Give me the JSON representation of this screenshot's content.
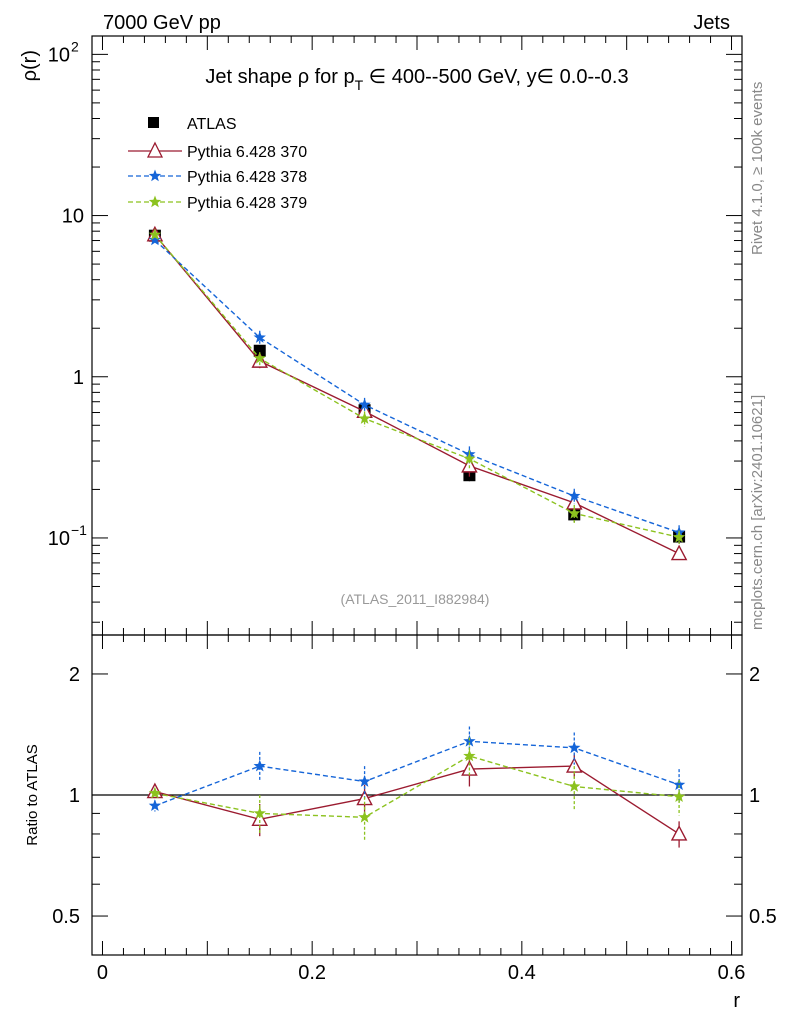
{
  "header": {
    "left": "7000 GeV pp",
    "right": "Jets"
  },
  "side": {
    "version": "Rivet 4.1.0, ≥ 100k events",
    "site": "mcplots.cern.ch [arXiv:2401.10621]"
  },
  "chart_data": {
    "type": "line",
    "title": {
      "prefix": "Jet shape ρ for p",
      "sub": "T",
      "suffix": " ∈ 400--500 GeV, y∈ 0.0--0.3"
    },
    "analysis": "(ATLAS_2011_I882984)",
    "xlabel": "r",
    "ylabel": "ρ(r)",
    "ratio_ylabel": "Ratio to ATLAS",
    "xlim": [
      -0.01,
      0.61
    ],
    "ylim": [
      0.025,
      130
    ],
    "ratio_ylim": [
      0.4,
      2.5
    ],
    "yscale": "log",
    "x_ticks": [
      0,
      0.2,
      0.4,
      0.6
    ],
    "x_tick_labels": [
      "0",
      "0.2",
      "0.4",
      "0.6"
    ],
    "y_ticks": [
      0.1,
      1,
      10,
      100
    ],
    "y_tick_labels": [
      {
        "base": "10",
        "exp": "−1"
      },
      {
        "base": "1",
        "exp": ""
      },
      {
        "base": "10",
        "exp": ""
      },
      {
        "base": "10",
        "exp": "2"
      }
    ],
    "ratio_ticks": [
      0.5,
      1,
      2
    ],
    "ratio_tick_labels": [
      "0.5",
      "1",
      "2"
    ],
    "x": [
      0.05,
      0.15,
      0.25,
      0.35,
      0.45,
      0.55
    ],
    "data": {
      "name": "ATLAS",
      "values": [
        7.5,
        1.45,
        0.62,
        0.245,
        0.14,
        0.102
      ],
      "errors": [
        0.3,
        0.1,
        0.05,
        0.02,
        0.015,
        0.01
      ]
    },
    "series": [
      {
        "name": "Pythia 6.428 370",
        "color": "#9b1b30",
        "dash": "",
        "marker": "triangle-open",
        "values": [
          7.6,
          1.25,
          0.61,
          0.28,
          0.165,
          0.08
        ],
        "errors": [
          0.25,
          0.12,
          0.06,
          0.04,
          0.018,
          0.007
        ]
      },
      {
        "name": "Pythia 6.428 378",
        "color": "#1565d8",
        "dash": "5,3",
        "marker": "star",
        "values": [
          7.05,
          1.75,
          0.67,
          0.33,
          0.182,
          0.108
        ],
        "errors": [
          0.25,
          0.18,
          0.07,
          0.04,
          0.02,
          0.012
        ]
      },
      {
        "name": "Pythia 6.428 379",
        "color": "#8cc21f",
        "dash": "5,3",
        "marker": "star",
        "values": [
          7.6,
          1.3,
          0.55,
          0.31,
          0.142,
          0.101
        ],
        "errors": [
          0.25,
          0.12,
          0.06,
          0.04,
          0.018,
          0.01
        ]
      }
    ],
    "ratios": [
      {
        "values": [
          1.02,
          0.87,
          0.98,
          1.16,
          1.18,
          0.8
        ],
        "errors": [
          0.03,
          0.08,
          0.08,
          0.11,
          0.08,
          0.06
        ]
      },
      {
        "values": [
          0.94,
          1.18,
          1.08,
          1.36,
          1.31,
          1.06
        ],
        "errors": [
          0.03,
          0.1,
          0.1,
          0.12,
          0.12,
          0.1
        ]
      },
      {
        "values": [
          1.01,
          0.9,
          0.88,
          1.25,
          1.05,
          0.99
        ],
        "errors": [
          0.03,
          0.1,
          0.11,
          0.14,
          0.13,
          0.1
        ]
      }
    ]
  }
}
